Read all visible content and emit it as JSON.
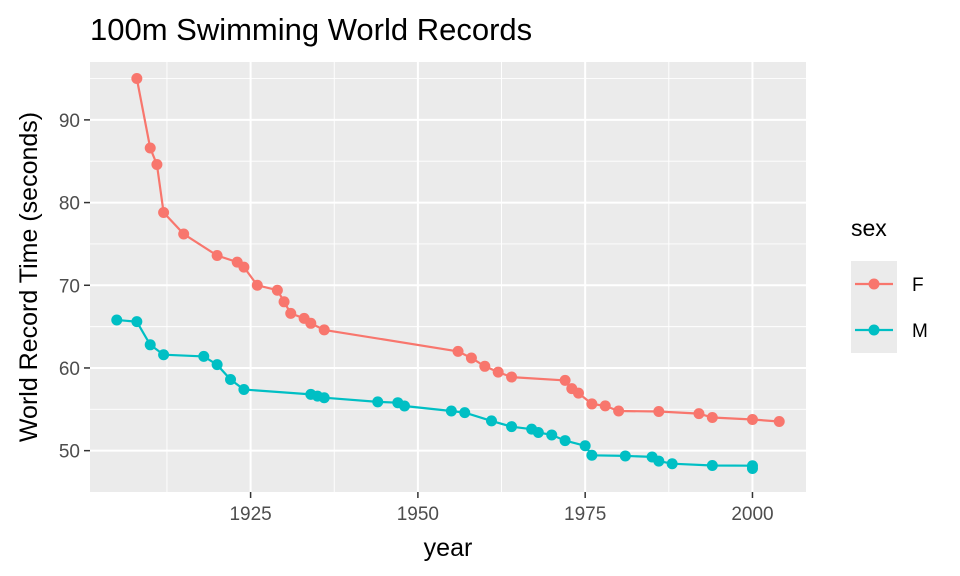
{
  "chart_data": {
    "type": "line",
    "title": "100m Swimming World Records",
    "xlabel": "year",
    "ylabel": "World Record Time (seconds)",
    "xlim": [
      1901,
      2008
    ],
    "ylim": [
      45,
      97
    ],
    "x_ticks": [
      1925,
      1950,
      1975,
      2000
    ],
    "y_ticks": [
      50,
      60,
      70,
      80,
      90
    ],
    "grid": true,
    "legend": {
      "title": "sex",
      "position": "right"
    },
    "series": [
      {
        "name": "F",
        "color": "#F8766D",
        "points": [
          [
            1908,
            95.0
          ],
          [
            1910,
            86.6
          ],
          [
            1911,
            84.6
          ],
          [
            1912,
            78.8
          ],
          [
            1915,
            76.2
          ],
          [
            1920,
            73.6
          ],
          [
            1923,
            72.8
          ],
          [
            1924,
            72.2
          ],
          [
            1926,
            70.0
          ],
          [
            1929,
            69.4
          ],
          [
            1930,
            68.0
          ],
          [
            1931,
            66.6
          ],
          [
            1933,
            66.0
          ],
          [
            1934,
            65.4
          ],
          [
            1936,
            64.6
          ],
          [
            1956,
            62.0
          ],
          [
            1958,
            61.2
          ],
          [
            1960,
            60.2
          ],
          [
            1962,
            59.5
          ],
          [
            1964,
            58.9
          ],
          [
            1972,
            58.5
          ],
          [
            1973,
            57.5
          ],
          [
            1974,
            56.96
          ],
          [
            1976,
            55.65
          ],
          [
            1978,
            55.41
          ],
          [
            1980,
            54.79
          ],
          [
            1986,
            54.73
          ],
          [
            1992,
            54.48
          ],
          [
            1994,
            54.01
          ],
          [
            2000,
            53.77
          ],
          [
            2004,
            53.52
          ]
        ]
      },
      {
        "name": "M",
        "color": "#00BFC4",
        "points": [
          [
            1905,
            65.8
          ],
          [
            1908,
            65.6
          ],
          [
            1910,
            62.8
          ],
          [
            1912,
            61.6
          ],
          [
            1918,
            61.4
          ],
          [
            1920,
            60.4
          ],
          [
            1922,
            58.6
          ],
          [
            1924,
            57.4
          ],
          [
            1934,
            56.8
          ],
          [
            1935,
            56.6
          ],
          [
            1936,
            56.4
          ],
          [
            1944,
            55.9
          ],
          [
            1947,
            55.8
          ],
          [
            1948,
            55.4
          ],
          [
            1955,
            54.8
          ],
          [
            1957,
            54.6
          ],
          [
            1961,
            53.6
          ],
          [
            1964,
            52.9
          ],
          [
            1967,
            52.6
          ],
          [
            1968,
            52.2
          ],
          [
            1970,
            51.9
          ],
          [
            1972,
            51.22
          ],
          [
            1975,
            50.59
          ],
          [
            1976,
            49.44
          ],
          [
            1981,
            49.36
          ],
          [
            1985,
            49.24
          ],
          [
            1986,
            48.74
          ],
          [
            1988,
            48.42
          ],
          [
            1994,
            48.21
          ],
          [
            2000,
            48.18
          ],
          [
            2000,
            47.84
          ]
        ]
      }
    ],
    "colors": {
      "panel": "#EBEBEB",
      "grid": "#FFFFFF",
      "tick_text": "#4D4D4D"
    }
  }
}
